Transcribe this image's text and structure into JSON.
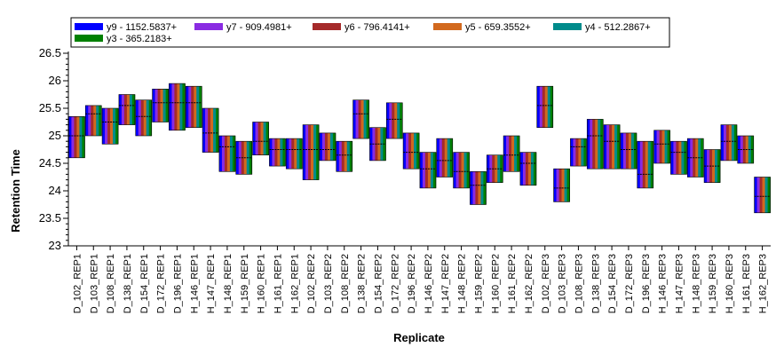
{
  "chart_data": {
    "type": "box",
    "xlabel": "Replicate",
    "ylabel": "Retention Time",
    "ylim": [
      23,
      26.5
    ],
    "yticks": [
      23,
      23.5,
      24,
      24.5,
      25,
      25.5,
      26,
      26.5
    ],
    "legend_placement": "top",
    "series": [
      {
        "name": "y9 - 1152.5837+",
        "color": "#0000ff"
      },
      {
        "name": "y7 - 909.4981+",
        "color": "#8a2be2"
      },
      {
        "name": "y6 - 796.4141+",
        "color": "#a52a2a"
      },
      {
        "name": "y5 - 659.3552+",
        "color": "#d2691e"
      },
      {
        "name": "y4 - 512.2867+",
        "color": "#008b8b"
      },
      {
        "name": "y3 - 365.2183+",
        "color": "#008000"
      }
    ],
    "categories": [
      "D_102_REP1",
      "D_103_REP1",
      "D_108_REP1",
      "D_138_REP1",
      "D_154_REP1",
      "D_172_REP1",
      "D_196_REP1",
      "H_146_REP1",
      "H_147_REP1",
      "H_148_REP1",
      "H_159_REP1",
      "H_160_REP1",
      "H_161_REP1",
      "H_162_REP1",
      "D_102_REP2",
      "D_103_REP2",
      "D_108_REP2",
      "D_138_REP2",
      "D_154_REP2",
      "D_172_REP2",
      "D_196_REP2",
      "H_146_REP2",
      "H_147_REP2",
      "H_148_REP2",
      "H_159_REP2",
      "H_160_REP2",
      "H_161_REP2",
      "H_162_REP2",
      "D_102_REP3",
      "D_103_REP3",
      "D_108_REP3",
      "D_138_REP3",
      "D_154_REP3",
      "D_172_REP3",
      "D_196_REP3",
      "H_146_REP3",
      "H_147_REP3",
      "H_148_REP3",
      "H_159_REP3",
      "H_160_REP3",
      "H_161_REP3",
      "H_162_REP3"
    ],
    "boxes": [
      {
        "low": 24.6,
        "high": 25.35,
        "median": 25.0
      },
      {
        "low": 25.0,
        "high": 25.55,
        "median": 25.4
      },
      {
        "low": 24.85,
        "high": 25.5,
        "median": 25.25
      },
      {
        "low": 25.2,
        "high": 25.75,
        "median": 25.55
      },
      {
        "low": 25.0,
        "high": 25.65,
        "median": 25.35
      },
      {
        "low": 25.25,
        "high": 25.85,
        "median": 25.6
      },
      {
        "low": 25.1,
        "high": 25.95,
        "median": 25.6
      },
      {
        "low": 25.15,
        "high": 25.9,
        "median": 25.6
      },
      {
        "low": 24.7,
        "high": 25.5,
        "median": 25.05
      },
      {
        "low": 24.35,
        "high": 25.0,
        "median": 24.8
      },
      {
        "low": 24.3,
        "high": 24.9,
        "median": 24.6
      },
      {
        "low": 24.65,
        "high": 25.25,
        "median": 24.9
      },
      {
        "low": 24.45,
        "high": 24.95,
        "median": 24.75
      },
      {
        "low": 24.4,
        "high": 24.95,
        "median": 24.75
      },
      {
        "low": 24.2,
        "high": 25.2,
        "median": 24.75
      },
      {
        "low": 24.55,
        "high": 25.05,
        "median": 24.75
      },
      {
        "low": 24.35,
        "high": 24.9,
        "median": 24.65
      },
      {
        "low": 24.95,
        "high": 25.65,
        "median": 25.4
      },
      {
        "low": 24.55,
        "high": 25.15,
        "median": 24.85
      },
      {
        "low": 24.95,
        "high": 25.6,
        "median": 25.3
      },
      {
        "low": 24.4,
        "high": 25.05,
        "median": 24.7
      },
      {
        "low": 24.05,
        "high": 24.7,
        "median": 24.4
      },
      {
        "low": 24.25,
        "high": 24.95,
        "median": 24.55
      },
      {
        "low": 24.05,
        "high": 24.7,
        "median": 24.35
      },
      {
        "low": 23.75,
        "high": 24.35,
        "median": 24.1
      },
      {
        "low": 24.15,
        "high": 24.65,
        "median": 24.4
      },
      {
        "low": 24.35,
        "high": 25.0,
        "median": 24.65
      },
      {
        "low": 24.1,
        "high": 24.7,
        "median": 24.5
      },
      {
        "low": 25.15,
        "high": 25.9,
        "median": 25.55
      },
      {
        "low": 23.8,
        "high": 24.4,
        "median": 24.05
      },
      {
        "low": 24.45,
        "high": 24.95,
        "median": 24.8
      },
      {
        "low": 24.4,
        "high": 25.3,
        "median": 25.0
      },
      {
        "low": 24.4,
        "high": 25.2,
        "median": 24.9
      },
      {
        "low": 24.4,
        "high": 25.05,
        "median": 24.75
      },
      {
        "low": 24.05,
        "high": 24.9,
        "median": 24.3
      },
      {
        "low": 24.5,
        "high": 25.1,
        "median": 24.85
      },
      {
        "low": 24.3,
        "high": 24.9,
        "median": 24.7
      },
      {
        "low": 24.25,
        "high": 24.95,
        "median": 24.6
      },
      {
        "low": 24.15,
        "high": 24.75,
        "median": 24.45
      },
      {
        "low": 24.55,
        "high": 25.2,
        "median": 24.9
      },
      {
        "low": 24.5,
        "high": 25.0,
        "median": 24.75
      },
      {
        "low": 23.6,
        "high": 24.25,
        "median": 23.9
      }
    ]
  }
}
